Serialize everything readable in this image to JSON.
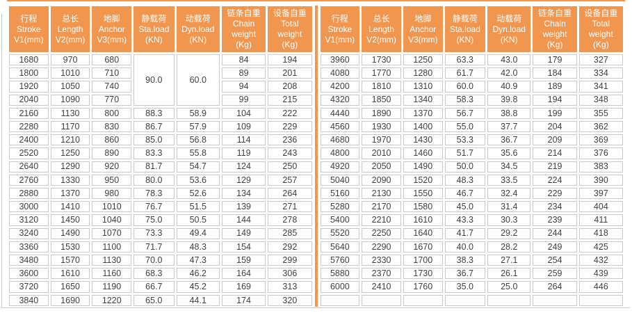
{
  "colors": {
    "accent_orange": "#F0964E",
    "cell_border": "#C9C9C9",
    "cell_text": "#3F3F3F",
    "header_text": "#FFFFFF",
    "background": "#FFFFFF"
  },
  "table": {
    "columns": [
      {
        "cn": "行程",
        "en": "Stroke",
        "unit": "V1(mm)"
      },
      {
        "cn": "总长",
        "en": "Length",
        "unit": "V2(mm)"
      },
      {
        "cn": "地脚",
        "en": "Anchor",
        "unit": "V3(mm)"
      },
      {
        "cn": "静载荷",
        "en": "Sta.load",
        "unit": "(KN)"
      },
      {
        "cn": "动载荷",
        "en": "Dyn.load",
        "unit": "(KN)"
      },
      {
        "cn": "链条自重",
        "en": "Chain",
        "en2": "weight",
        "unit": "(Kg)"
      },
      {
        "cn": "设备自重",
        "en": "Total",
        "en2": "weight",
        "unit": "(Kg)"
      }
    ],
    "left_rows": [
      [
        "1680",
        "970",
        "680",
        {
          "v": "90.0",
          "rowspan": 4
        },
        {
          "v": "60.0",
          "rowspan": 4
        },
        "84",
        "194"
      ],
      [
        "1800",
        "1010",
        "710",
        null,
        null,
        "89",
        "201"
      ],
      [
        "1920",
        "1050",
        "740",
        null,
        null,
        "94",
        "208"
      ],
      [
        "2040",
        "1090",
        "770",
        null,
        null,
        "99",
        "215"
      ],
      [
        "2160",
        "1130",
        "800",
        "88.3",
        "58.9",
        "104",
        "222"
      ],
      [
        "2280",
        "1170",
        "830",
        "86.7",
        "57.9",
        "109",
        "229"
      ],
      [
        "2400",
        "1210",
        "860",
        "85.0",
        "56.8",
        "114",
        "236"
      ],
      [
        "2520",
        "1250",
        "890",
        "83.3",
        "55.8",
        "119",
        "243"
      ],
      [
        "2640",
        "1290",
        "920",
        "81.7",
        "54.7",
        "124",
        "250"
      ],
      [
        "2760",
        "1330",
        "950",
        "80.0",
        "53.6",
        "129",
        "257"
      ],
      [
        "2880",
        "1370",
        "980",
        "78.3",
        "52.6",
        "134",
        "264"
      ],
      [
        "3000",
        "1410",
        "1010",
        "76.7",
        "51.5",
        "139",
        "271"
      ],
      [
        "3120",
        "1450",
        "1040",
        "75.0",
        "50.5",
        "144",
        "278"
      ],
      [
        "3240",
        "1490",
        "1070",
        "73.3",
        "49.4",
        "149",
        "285"
      ],
      [
        "3360",
        "1530",
        "1100",
        "71.7",
        "48.3",
        "154",
        "292"
      ],
      [
        "3480",
        "1570",
        "1130",
        "70.0",
        "47.3",
        "159",
        "299"
      ],
      [
        "3600",
        "1610",
        "1160",
        "68.3",
        "46.2",
        "164",
        "306"
      ],
      [
        "3720",
        "1650",
        "1190",
        "66.7",
        "45.2",
        "169",
        "313"
      ],
      [
        "3840",
        "1690",
        "1220",
        "65.0",
        "44.1",
        "174",
        "320"
      ]
    ],
    "right_rows": [
      [
        "3960",
        "1730",
        "1250",
        "63.3",
        "43.0",
        "179",
        "327"
      ],
      [
        "4080",
        "1770",
        "1280",
        "61.7",
        "42.0",
        "184",
        "334"
      ],
      [
        "4200",
        "1810",
        "1310",
        "60.0",
        "40.9",
        "189",
        "341"
      ],
      [
        "4320",
        "1850",
        "1340",
        "58.3",
        "39.8",
        "194",
        "348"
      ],
      [
        "4440",
        "1890",
        "1370",
        "56.7",
        "38.8",
        "199",
        "355"
      ],
      [
        "4560",
        "1930",
        "1400",
        "55.0",
        "37.7",
        "204",
        "362"
      ],
      [
        "4680",
        "1970",
        "1430",
        "53.3",
        "36.7",
        "209",
        "369"
      ],
      [
        "4800",
        "2010",
        "1460",
        "51.7",
        "35.6",
        "214",
        "376"
      ],
      [
        "4920",
        "2050",
        "1490",
        "50.0",
        "34.5",
        "219",
        "383"
      ],
      [
        "5040",
        "2090",
        "1520",
        "48.3",
        "33.5",
        "224",
        "390"
      ],
      [
        "5160",
        "2130",
        "1550",
        "46.7",
        "32.4",
        "229",
        "397"
      ],
      [
        "5280",
        "2170",
        "1580",
        "45.0",
        "31.4",
        "234",
        "404"
      ],
      [
        "5400",
        "2210",
        "1610",
        "43.3",
        "30.3",
        "239",
        "411"
      ],
      [
        "5520",
        "2250",
        "1640",
        "41.7",
        "29.2",
        "244",
        "418"
      ],
      [
        "5640",
        "2290",
        "1670",
        "40.0",
        "28.2",
        "249",
        "425"
      ],
      [
        "5760",
        "2330",
        "1700",
        "38.3",
        "27.1",
        "254",
        "432"
      ],
      [
        "5880",
        "2370",
        "1730",
        "36.7",
        "26.1",
        "259",
        "439"
      ],
      [
        "6000",
        "2410",
        "1760",
        "35.0",
        "25.0",
        "264",
        "446"
      ],
      [
        "",
        "",
        "",
        "",
        "",
        "",
        ""
      ]
    ]
  }
}
